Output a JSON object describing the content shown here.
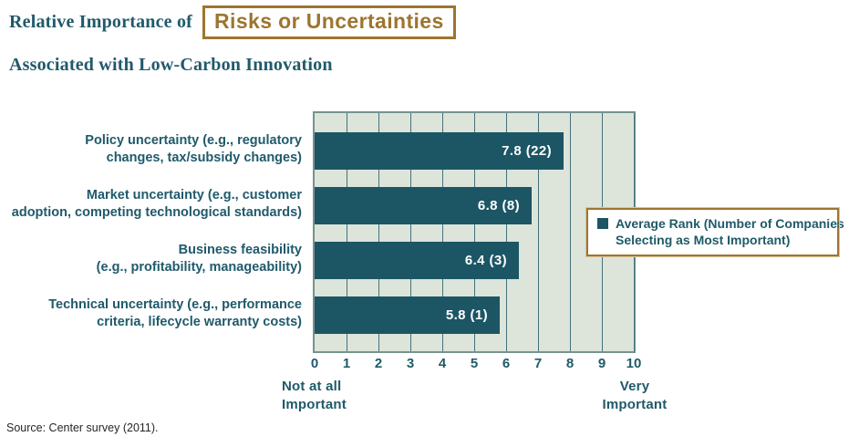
{
  "header": {
    "title_prefix": "Relative Importance of",
    "title_highlight": "Risks or Uncertainties",
    "subtitle": "Associated with Low-Carbon Innovation"
  },
  "chart_data": {
    "type": "bar",
    "orientation": "horizontal",
    "title": "Relative Importance of Risks or Uncertainties Associated with Low-Carbon Innovation",
    "categories": [
      [
        "Policy uncertainty (e.g., regulatory",
        "changes, tax/subsidy changes)"
      ],
      [
        "Market uncertainty (e.g., customer",
        "adoption, competing technological standards)"
      ],
      [
        "Business feasibility",
        "(e.g., profitability, manageability)"
      ],
      [
        "Technical uncertainty (e.g., performance",
        "criteria, lifecycle warranty costs)"
      ]
    ],
    "values": [
      7.8,
      6.8,
      6.4,
      5.8
    ],
    "counts": [
      22,
      8,
      3,
      1
    ],
    "bar_labels": [
      "7.8 (22)",
      "6.8 (8)",
      "6.4 (3)",
      "5.8 (1)"
    ],
    "x_ticks": [
      "0",
      "1",
      "2",
      "3",
      "4",
      "5",
      "6",
      "7",
      "8",
      "9",
      "10"
    ],
    "xlim": [
      0,
      10
    ],
    "grid": true,
    "axis_min_label": [
      "Not at all",
      "Important"
    ],
    "axis_max_label": [
      "Very",
      "Important"
    ],
    "legend_lines": [
      "Average Rank (Number of Companies",
      "Selecting as Most Important)"
    ],
    "legend_position": "right-overlay",
    "colors": {
      "bar": "#1c5665",
      "plot_background": "#dde4da",
      "gridline": "#44737c",
      "accent_brown": "#9d7530",
      "text_teal": "#1f5a68"
    }
  },
  "footer": {
    "source": "Source: Center survey (2011)."
  }
}
